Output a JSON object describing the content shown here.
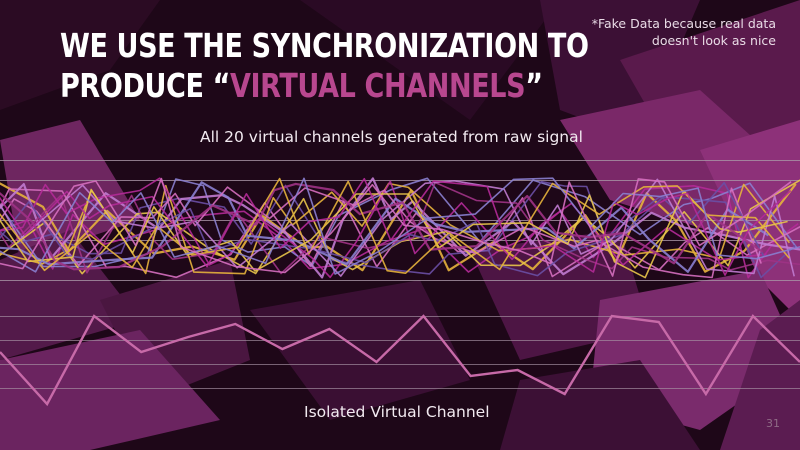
{
  "slide": {
    "title_line1": "WE USE THE SYNCHRONIZATION TO",
    "title_line2_prefix": "PRODUCE “",
    "title_line2_highlight": "VIRTUAL CHANNELS",
    "title_line2_suffix": "”",
    "note_line1": "*Fake Data because real data",
    "note_line2": "doesn't look as nice",
    "page_number": "31"
  },
  "colors": {
    "background": "#1e0718",
    "title": "#ffffff",
    "highlight": "#b8478f",
    "gridline": "#a995a6",
    "isolated_line": "#c76aa8",
    "series_palette": [
      "#e5b23c",
      "#b42a98",
      "#8a7fd0",
      "#d56fbf",
      "#6a4fa5",
      "#c07bd0",
      "#e8c54a",
      "#9e3385"
    ]
  },
  "chart_data": [
    {
      "type": "line",
      "title": "All 20 virtual channels generated from raw signal",
      "grid": true,
      "legend": "none",
      "series_count": 20
    },
    {
      "type": "line",
      "title": "Isolated Virtual Channel",
      "grid": true,
      "legend": "none",
      "x": [
        0,
        1,
        2,
        3,
        4,
        5,
        6,
        7,
        8,
        9,
        10,
        11,
        12,
        13,
        14,
        15,
        16,
        17
      ],
      "series": [
        {
          "values": [
            0.62,
            0.1,
            0.98,
            0.62,
            0.77,
            0.9,
            0.65,
            0.85,
            0.52,
            0.98,
            0.38,
            0.44,
            0.2,
            0.98,
            0.92,
            0.2,
            0.98,
            0.52
          ]
        }
      ]
    }
  ]
}
